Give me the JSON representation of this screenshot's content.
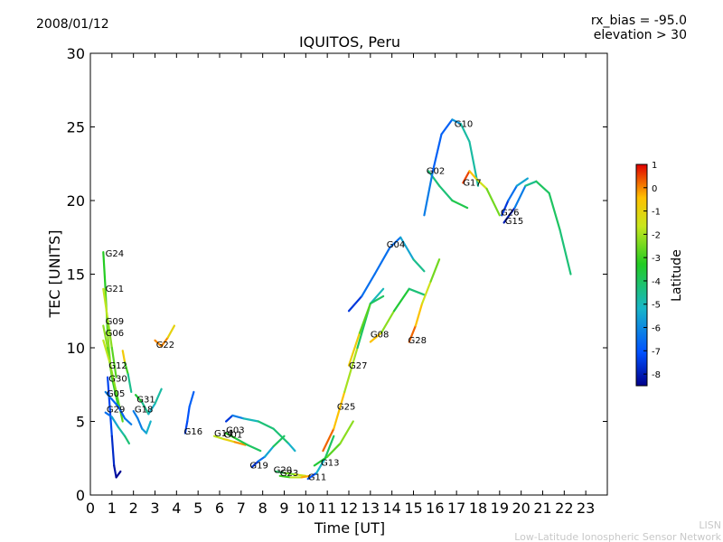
{
  "date": "2008/01/12",
  "info": {
    "rx_bias": "rx_bias = -95.0",
    "elevation": "elevation > 30"
  },
  "footer": {
    "line1": "LISN",
    "line2": "Low-Latitude Ionospheric Sensor Network"
  },
  "chart_data": {
    "type": "scatter",
    "title": "IQUITOS, Peru",
    "xlabel": "Time [UT]",
    "ylabel": "TEC [UNITS]",
    "xlim": [
      0,
      24
    ],
    "ylim": [
      0,
      30
    ],
    "xticks": [
      0,
      1,
      2,
      3,
      4,
      5,
      6,
      7,
      8,
      9,
      10,
      11,
      12,
      13,
      14,
      15,
      16,
      17,
      18,
      19,
      20,
      21,
      22,
      23
    ],
    "yticks": [
      0,
      5,
      10,
      15,
      20,
      25,
      30
    ],
    "colorbar": {
      "label": "Latitude",
      "min": -8.5,
      "max": 1,
      "ticks": [
        1,
        0,
        -1,
        -2,
        -3,
        -4,
        -5,
        -6,
        -7,
        -8
      ]
    },
    "series": [
      {
        "name": "G24",
        "label_at": [
          0.7,
          16.2
        ],
        "points": [
          [
            0.6,
            16.5,
            -3.5
          ],
          [
            0.7,
            14,
            -3
          ],
          [
            0.8,
            11,
            -2.5
          ],
          [
            0.95,
            8.5,
            -2
          ]
        ]
      },
      {
        "name": "G21",
        "label_at": [
          0.7,
          13.8
        ],
        "points": [
          [
            0.6,
            14,
            -1.5
          ],
          [
            0.8,
            12,
            -2
          ],
          [
            1.0,
            10,
            -2.5
          ],
          [
            1.2,
            8,
            -3
          ]
        ]
      },
      {
        "name": "G09",
        "label_at": [
          0.7,
          11.6
        ],
        "points": [
          [
            0.6,
            11.5,
            -2
          ],
          [
            0.8,
            10,
            -2.5
          ],
          [
            1.0,
            8,
            -3
          ],
          [
            1.3,
            6,
            -3.5
          ]
        ]
      },
      {
        "name": "G06",
        "label_at": [
          0.7,
          10.8
        ],
        "points": [
          [
            0.6,
            10.5,
            -1.5
          ],
          [
            0.9,
            9,
            -2
          ],
          [
            1.2,
            7,
            -2.5
          ],
          [
            1.5,
            5,
            -3
          ]
        ]
      },
      {
        "name": "G12",
        "label_at": [
          0.85,
          8.6
        ],
        "points": [
          [
            1.5,
            9.8,
            0.5
          ],
          [
            1.6,
            9,
            -2
          ],
          [
            1.75,
            8.2,
            -4
          ],
          [
            1.9,
            7,
            -5
          ]
        ]
      },
      {
        "name": "G30",
        "label_at": [
          0.85,
          7.7
        ],
        "points": [
          [
            0.8,
            8,
            -7.5
          ],
          [
            0.9,
            6,
            -7
          ],
          [
            1.0,
            4,
            -7.5
          ],
          [
            1.1,
            2,
            -8
          ],
          [
            1.2,
            1.2,
            -8.3
          ],
          [
            1.4,
            1.6,
            -8.5
          ]
        ]
      },
      {
        "name": "G05",
        "label_at": [
          0.75,
          6.7
        ],
        "points": [
          [
            0.7,
            7,
            -6
          ],
          [
            1.0,
            6.5,
            -6.5
          ],
          [
            1.3,
            6,
            -7
          ],
          [
            1.6,
            5.2,
            -6.5
          ],
          [
            1.9,
            4.8,
            -6
          ]
        ]
      },
      {
        "name": "G29",
        "label_at": [
          0.75,
          5.6
        ],
        "points": [
          [
            0.7,
            5.6,
            -7
          ],
          [
            1.0,
            5.3,
            -6
          ],
          [
            1.3,
            4.6,
            -5
          ],
          [
            1.6,
            4,
            -4.5
          ],
          [
            1.8,
            3.5,
            -4
          ]
        ]
      },
      {
        "name": "G31",
        "label_at": [
          2.15,
          6.3
        ],
        "points": [
          [
            2.1,
            6.8,
            -3
          ],
          [
            2.4,
            6.3,
            -4
          ],
          [
            2.7,
            5.5,
            -5
          ],
          [
            3.0,
            6.2,
            -5.5
          ],
          [
            3.3,
            7.2,
            -4
          ]
        ]
      },
      {
        "name": "G18",
        "label_at": [
          2.05,
          5.6
        ],
        "points": [
          [
            2.0,
            5.7,
            -6
          ],
          [
            2.2,
            5.2,
            -6.5
          ],
          [
            2.4,
            4.5,
            -6
          ],
          [
            2.6,
            4.2,
            -5.5
          ],
          [
            2.8,
            5,
            -5
          ]
        ]
      },
      {
        "name": "G22",
        "label_at": [
          3.05,
          10.0
        ],
        "points": [
          [
            3.0,
            10.5,
            -0.5
          ],
          [
            3.3,
            10.1,
            0.5
          ],
          [
            3.6,
            10.7,
            -0.5
          ],
          [
            3.9,
            11.5,
            -1.5
          ]
        ]
      },
      {
        "name": "G16",
        "label_at": [
          4.35,
          4.1
        ],
        "points": [
          [
            4.4,
            4.2,
            -7.5
          ],
          [
            4.5,
            5,
            -7
          ],
          [
            4.6,
            6,
            -7
          ],
          [
            4.8,
            7,
            -6.5
          ]
        ]
      },
      {
        "name": "G14",
        "label_at": [
          5.75,
          4.0
        ],
        "points": [
          [
            5.75,
            4.0,
            -2
          ],
          [
            6.2,
            3.8,
            -1.5
          ],
          [
            6.7,
            3.6,
            -0.5
          ],
          [
            7.2,
            3.4,
            0.3
          ]
        ]
      },
      {
        "name": "G01",
        "label_at": [
          6.2,
          3.9
        ],
        "points": [
          [
            6.3,
            4.2,
            -3
          ],
          [
            6.8,
            3.8,
            -3.5
          ],
          [
            7.3,
            3.4,
            -4
          ],
          [
            7.9,
            3.0,
            -4
          ]
        ]
      },
      {
        "name": "G03",
        "label_at": [
          6.3,
          4.2
        ],
        "points": [
          [
            6.3,
            5.0,
            -8
          ],
          [
            6.6,
            5.4,
            -7
          ],
          [
            7.1,
            5.2,
            -5.5
          ],
          [
            7.8,
            5.0,
            -4.5
          ],
          [
            8.5,
            4.5,
            -4
          ],
          [
            9.2,
            3.5,
            -4.5
          ],
          [
            9.5,
            3.0,
            -6
          ]
        ]
      },
      {
        "name": "G19",
        "label_at": [
          7.4,
          1.8
        ],
        "points": [
          [
            7.5,
            1.9,
            -8
          ],
          [
            7.8,
            2.3,
            -7
          ],
          [
            8.1,
            2.6,
            -6
          ],
          [
            8.5,
            3.3,
            -5
          ],
          [
            9,
            4,
            -3
          ]
        ]
      },
      {
        "name": "G20",
        "label_at": [
          8.5,
          1.5
        ],
        "points": [
          [
            8.6,
            1.6,
            -5
          ],
          [
            9.0,
            1.5,
            -3
          ],
          [
            9.5,
            1.4,
            -2
          ],
          [
            10,
            1.3,
            -1
          ]
        ]
      },
      {
        "name": "G23",
        "label_at": [
          8.8,
          1.3
        ],
        "points": [
          [
            8.8,
            1.3,
            -3.5
          ],
          [
            9.3,
            1.2,
            -2.5
          ],
          [
            9.8,
            1.2,
            -1
          ],
          [
            10.2,
            1.3,
            0.5
          ]
        ]
      },
      {
        "name": "G11",
        "label_at": [
          10.1,
          1.0
        ],
        "points": [
          [
            10.1,
            1.1,
            -8
          ],
          [
            10.5,
            1.5,
            -6
          ],
          [
            10.9,
            2.5,
            -4.5
          ],
          [
            11.3,
            4,
            -3.5
          ]
        ]
      },
      {
        "name": "G13",
        "label_at": [
          10.7,
          2.0
        ],
        "points": [
          [
            10.4,
            2.0,
            -4
          ],
          [
            11,
            2.6,
            -3
          ],
          [
            11.6,
            3.5,
            -2.5
          ],
          [
            12.2,
            5,
            -2
          ]
        ]
      },
      {
        "name": "G25",
        "label_at": [
          11.45,
          5.8
        ],
        "points": [
          [
            10.8,
            3,
            0.5
          ],
          [
            11.3,
            4.5,
            0
          ],
          [
            11.8,
            7,
            -1
          ],
          [
            12.4,
            10,
            -3
          ],
          [
            13,
            13,
            -5
          ],
          [
            13.6,
            14,
            -5
          ]
        ]
      },
      {
        "name": "G27",
        "label_at": [
          12.0,
          8.6
        ],
        "points": [
          [
            12.0,
            8.8,
            0.3
          ],
          [
            12.5,
            11,
            -2
          ],
          [
            13,
            13,
            -3.5
          ],
          [
            13.6,
            13.5,
            -4.5
          ]
        ]
      },
      {
        "name": "G08",
        "label_at": [
          13.0,
          10.7
        ],
        "points": [
          [
            13.0,
            10.4,
            0.5
          ],
          [
            13.5,
            11,
            -1.5
          ],
          [
            14.1,
            12.5,
            -3
          ],
          [
            14.8,
            14,
            -4
          ],
          [
            15.5,
            13.6,
            -4.5
          ]
        ]
      },
      {
        "name": "G28",
        "label_at": [
          14.75,
          10.3
        ],
        "points": [
          [
            14.8,
            10.4,
            0.5
          ],
          [
            15.1,
            11.5,
            0
          ],
          [
            15.4,
            13,
            -1
          ],
          [
            15.8,
            14.5,
            -2
          ],
          [
            16.2,
            16,
            -3
          ]
        ]
      },
      {
        "name": "G04",
        "label_at": [
          13.75,
          16.8
        ],
        "points": [
          [
            12.0,
            12.5,
            -8
          ],
          [
            12.6,
            13.5,
            -7
          ],
          [
            13.2,
            15,
            -6
          ],
          [
            13.9,
            16.8,
            -7
          ],
          [
            14.4,
            17.5,
            -6
          ],
          [
            15,
            16,
            -5
          ],
          [
            15.5,
            15.2,
            -4
          ]
        ]
      },
      {
        "name": "G02",
        "label_at": [
          15.6,
          21.8
        ],
        "points": [
          [
            15.7,
            22,
            -4
          ],
          [
            16.2,
            21,
            -4.5
          ],
          [
            16.8,
            20,
            -4
          ],
          [
            17.5,
            19.5,
            -3.5
          ]
        ]
      },
      {
        "name": "G10",
        "label_at": [
          16.9,
          25.0
        ],
        "points": [
          [
            15.5,
            19,
            -6
          ],
          [
            15.9,
            22,
            -6.5
          ],
          [
            16.3,
            24.5,
            -7
          ],
          [
            16.8,
            25.5,
            -6.5
          ],
          [
            17.2,
            25.2,
            -5
          ],
          [
            17.6,
            24,
            -4.5
          ],
          [
            18.0,
            21,
            -5
          ]
        ]
      },
      {
        "name": "G17",
        "label_at": [
          17.3,
          21.0
        ],
        "points": [
          [
            17.3,
            21.2,
            1
          ],
          [
            17.6,
            22,
            0
          ],
          [
            17.9,
            21.5,
            -1
          ],
          [
            18.4,
            20.8,
            -2
          ],
          [
            19,
            19,
            -3
          ]
        ]
      },
      {
        "name": "G26",
        "label_at": [
          19.05,
          19.0
        ],
        "points": [
          [
            19.1,
            19,
            -8
          ],
          [
            19.4,
            20,
            -7
          ],
          [
            19.8,
            21,
            -6
          ],
          [
            20.3,
            21.5,
            -5
          ]
        ]
      },
      {
        "name": "G15",
        "label_at": [
          19.25,
          18.4
        ],
        "points": [
          [
            19.2,
            18.5,
            -8.5
          ],
          [
            19.7,
            19.5,
            -7.5
          ],
          [
            20.2,
            21,
            -5
          ],
          [
            20.7,
            21.3,
            -4
          ],
          [
            21.3,
            20.5,
            -4
          ],
          [
            21.8,
            18,
            -4
          ],
          [
            22.3,
            15,
            -4.5
          ]
        ]
      }
    ]
  }
}
